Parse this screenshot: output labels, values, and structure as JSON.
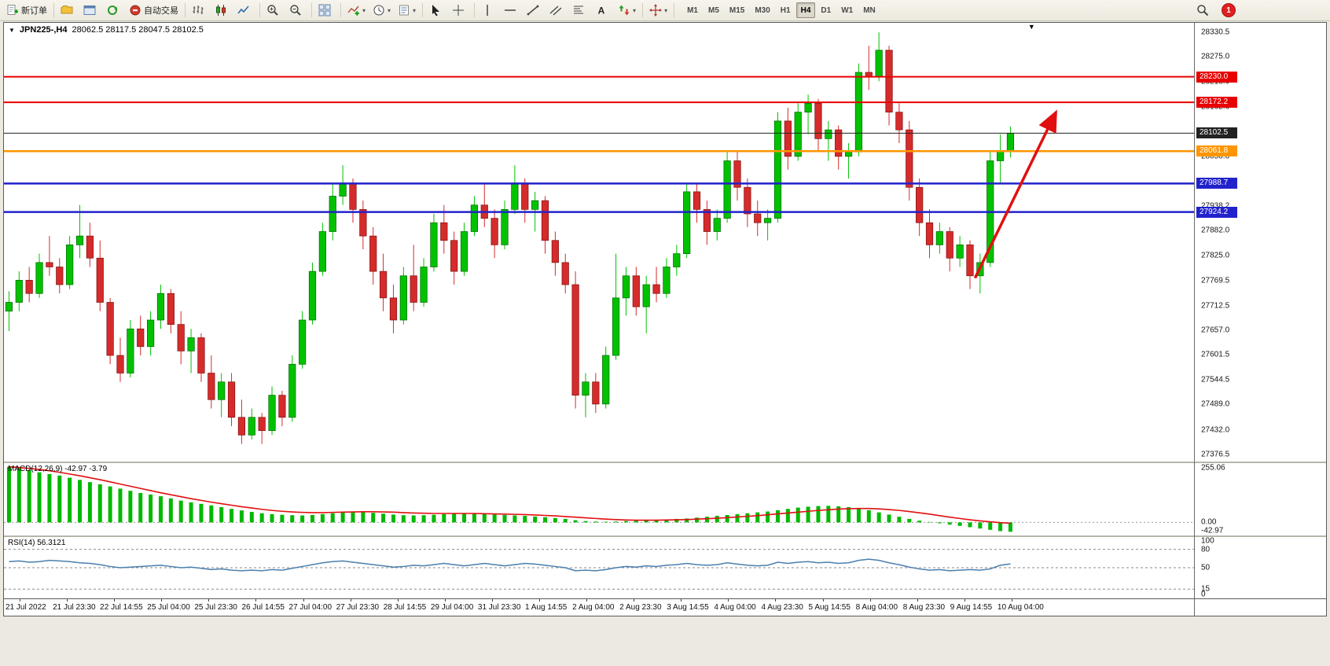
{
  "toolbar": {
    "buttons": [
      {
        "icon": "new-order",
        "label": "新订单"
      },
      {
        "sep": true
      },
      {
        "icon": "profiles"
      },
      {
        "icon": "terminal"
      },
      {
        "icon": "refresh"
      },
      {
        "icon": "autotrade",
        "label": "自动交易"
      },
      {
        "sep": true
      },
      {
        "icon": "bars-chart"
      },
      {
        "icon": "candles-chart"
      },
      {
        "icon": "line-chart"
      },
      {
        "sep": true
      },
      {
        "icon": "zoom-in"
      },
      {
        "icon": "zoom-out"
      },
      {
        "sep": true
      },
      {
        "icon": "tile-windows"
      },
      {
        "sep": true
      },
      {
        "icon": "indicators",
        "dropdown": true
      },
      {
        "icon": "periods",
        "dropdown": true
      },
      {
        "icon": "templates",
        "dropdown": true
      },
      {
        "sep": true
      },
      {
        "icon": "cursor"
      },
      {
        "icon": "crosshair"
      },
      {
        "sep": true
      },
      {
        "icon": "vline"
      },
      {
        "icon": "hline"
      },
      {
        "icon": "trendline"
      },
      {
        "icon": "channel"
      },
      {
        "icon": "fibonacci"
      },
      {
        "icon": "text"
      },
      {
        "icon": "arrows",
        "dropdown": true
      },
      {
        "sep": true
      },
      {
        "icon": "scroll",
        "dropdown": true
      },
      {
        "sep": true
      }
    ],
    "timeframes": [
      "M1",
      "M5",
      "M15",
      "M30",
      "H1",
      "H4",
      "D1",
      "W1",
      "MN"
    ],
    "active_timeframe": "H4",
    "right_buttons": [
      {
        "icon": "search"
      },
      {
        "icon": "alert",
        "count": "1"
      }
    ]
  },
  "chart": {
    "symbol_label": "JPN225-,H4",
    "ohlc": "28062.5 28117.5 28047.5 28102.5"
  },
  "chart_data": [
    {
      "type": "candlestick",
      "title": "JPN225-,H4",
      "timeframe": "H4",
      "grid": "off",
      "up_color": "#00c200",
      "down_color": "#d62b2b",
      "ylim": [
        27360,
        28352
      ],
      "y_ticks": [
        "28330.5",
        "28275.0",
        "28218.0",
        "28162.6",
        "28106.1",
        "28050.0",
        "27993.6",
        "27938.2",
        "27882.0",
        "27825.0",
        "27769.5",
        "27712.5",
        "27657.0",
        "27601.5",
        "27544.5",
        "27489.0",
        "27432.0",
        "27376.5"
      ],
      "x_labels": [
        "21 Jul 2022",
        "21 Jul 23:30",
        "22 Jul 14:55",
        "25 Jul 04:00",
        "25 Jul 23:30",
        "26 Jul 14:55",
        "27 Jul 04:00",
        "27 Jul 23:30",
        "28 Jul 14:55",
        "29 Jul 04:00",
        "31 Jul 23:30",
        "1 Aug 14:55",
        "2 Aug 04:00",
        "2 Aug 23:30",
        "3 Aug 14:55",
        "4 Aug 04:00",
        "4 Aug 23:30",
        "5 Aug 14:55",
        "8 Aug 04:00",
        "8 Aug 23:30",
        "9 Aug 14:55",
        "10 Aug 04:00"
      ],
      "levels": [
        {
          "price": 28230.0,
          "label": "28230.0",
          "color": "#e80000",
          "width": 2
        },
        {
          "price": 28172.2,
          "label": "28172.2",
          "color": "#e80000",
          "width": 2
        },
        {
          "price": 28102.5,
          "label": "28102.5",
          "color": "#222222",
          "width": 1
        },
        {
          "price": 28061.8,
          "label": "28061.8",
          "color": "#ff9500",
          "width": 2.5
        },
        {
          "price": 27988.7,
          "label": "27988.7",
          "color": "#2222cc",
          "width": 2.5
        },
        {
          "price": 27924.2,
          "label": "27924.2",
          "color": "#2222cc",
          "width": 2.5
        }
      ],
      "arrow": {
        "from_index": 95.5,
        "from_price": 27775,
        "to_index": 103.5,
        "to_price": 28150,
        "color": "#e01010",
        "width": 3.5
      },
      "candles": [
        [
          27700,
          27745,
          27655,
          27720
        ],
        [
          27720,
          27790,
          27700,
          27770
        ],
        [
          27770,
          27800,
          27720,
          27740
        ],
        [
          27740,
          27830,
          27730,
          27810
        ],
        [
          27810,
          27870,
          27780,
          27800
        ],
        [
          27800,
          27820,
          27740,
          27760
        ],
        [
          27760,
          27870,
          27750,
          27850
        ],
        [
          27850,
          27940,
          27820,
          27870
        ],
        [
          27870,
          27900,
          27800,
          27820
        ],
        [
          27820,
          27860,
          27700,
          27720
        ],
        [
          27720,
          27730,
          27580,
          27600
        ],
        [
          27600,
          27640,
          27540,
          27560
        ],
        [
          27560,
          27680,
          27550,
          27660
        ],
        [
          27660,
          27690,
          27600,
          27620
        ],
        [
          27620,
          27700,
          27600,
          27680
        ],
        [
          27680,
          27760,
          27660,
          27740
        ],
        [
          27740,
          27750,
          27650,
          27670
        ],
        [
          27670,
          27700,
          27580,
          27610
        ],
        [
          27610,
          27660,
          27560,
          27640
        ],
        [
          27640,
          27650,
          27540,
          27560
        ],
        [
          27560,
          27600,
          27480,
          27500
        ],
        [
          27500,
          27560,
          27460,
          27540
        ],
        [
          27540,
          27560,
          27440,
          27460
        ],
        [
          27460,
          27500,
          27400,
          27420
        ],
        [
          27420,
          27480,
          27410,
          27460
        ],
        [
          27460,
          27470,
          27400,
          27430
        ],
        [
          27430,
          27530,
          27420,
          27510
        ],
        [
          27510,
          27520,
          27440,
          27460
        ],
        [
          27460,
          27600,
          27450,
          27580
        ],
        [
          27580,
          27700,
          27570,
          27680
        ],
        [
          27680,
          27810,
          27670,
          27790
        ],
        [
          27790,
          27900,
          27780,
          27880
        ],
        [
          27880,
          27990,
          27860,
          27960
        ],
        [
          27960,
          28030,
          27940,
          27990
        ],
        [
          27990,
          28000,
          27900,
          27930
        ],
        [
          27930,
          27950,
          27840,
          27870
        ],
        [
          27870,
          27890,
          27760,
          27790
        ],
        [
          27790,
          27830,
          27700,
          27730
        ],
        [
          27730,
          27760,
          27650,
          27680
        ],
        [
          27680,
          27800,
          27670,
          27780
        ],
        [
          27780,
          27850,
          27700,
          27720
        ],
        [
          27720,
          27820,
          27710,
          27800
        ],
        [
          27800,
          27920,
          27790,
          27900
        ],
        [
          27900,
          27940,
          27830,
          27860
        ],
        [
          27860,
          27880,
          27760,
          27790
        ],
        [
          27790,
          27900,
          27780,
          27880
        ],
        [
          27880,
          27960,
          27870,
          27940
        ],
        [
          27940,
          27990,
          27890,
          27910
        ],
        [
          27910,
          27930,
          27820,
          27850
        ],
        [
          27850,
          27950,
          27840,
          27930
        ],
        [
          27930,
          28030,
          27920,
          27990
        ],
        [
          27990,
          28000,
          27900,
          27930
        ],
        [
          27930,
          27970,
          27880,
          27950
        ],
        [
          27950,
          27960,
          27830,
          27860
        ],
        [
          27860,
          27880,
          27780,
          27810
        ],
        [
          27810,
          27830,
          27740,
          27760
        ],
        [
          27760,
          27790,
          27480,
          27510
        ],
        [
          27510,
          27560,
          27460,
          27540
        ],
        [
          27540,
          27560,
          27470,
          27490
        ],
        [
          27490,
          27620,
          27480,
          27600
        ],
        [
          27600,
          27830,
          27590,
          27730
        ],
        [
          27730,
          27800,
          27690,
          27780
        ],
        [
          27780,
          27800,
          27690,
          27710
        ],
        [
          27710,
          27780,
          27650,
          27760
        ],
        [
          27760,
          27800,
          27720,
          27740
        ],
        [
          27740,
          27820,
          27730,
          27800
        ],
        [
          27800,
          27850,
          27780,
          27830
        ],
        [
          27830,
          27990,
          27820,
          27970
        ],
        [
          27970,
          27990,
          27900,
          27930
        ],
        [
          27930,
          27950,
          27850,
          27880
        ],
        [
          27880,
          27930,
          27860,
          27910
        ],
        [
          27910,
          28060,
          27900,
          28040
        ],
        [
          28040,
          28060,
          27950,
          27980
        ],
        [
          27980,
          28000,
          27890,
          27920
        ],
        [
          27920,
          27950,
          27870,
          27900
        ],
        [
          27900,
          27930,
          27860,
          27910
        ],
        [
          27910,
          28150,
          27900,
          28130
        ],
        [
          28130,
          28160,
          28020,
          28050
        ],
        [
          28050,
          28170,
          28040,
          28150
        ],
        [
          28150,
          28190,
          28100,
          28170
        ],
        [
          28170,
          28180,
          28060,
          28090
        ],
        [
          28090,
          28130,
          28040,
          28110
        ],
        [
          28110,
          28120,
          28020,
          28050
        ],
        [
          28050,
          28080,
          28000,
          28060
        ],
        [
          28060,
          28260,
          28050,
          28240
        ],
        [
          28240,
          28300,
          28200,
          28230
        ],
        [
          28230,
          28330.5,
          28220,
          28290
        ],
        [
          28290,
          28300,
          28120,
          28150
        ],
        [
          28150,
          28170,
          28080,
          28110
        ],
        [
          28110,
          28130,
          27950,
          27980
        ],
        [
          27980,
          28000,
          27870,
          27900
        ],
        [
          27900,
          27930,
          27820,
          27850
        ],
        [
          27850,
          27900,
          27830,
          27880
        ],
        [
          27880,
          27890,
          27790,
          27820
        ],
        [
          27820,
          27870,
          27800,
          27850
        ],
        [
          27850,
          27860,
          27750,
          27780
        ],
        [
          27780,
          27830,
          27740,
          27810
        ],
        [
          27810,
          28060,
          27800,
          28040
        ],
        [
          28040,
          28100,
          27990,
          28062.5
        ],
        [
          28062.5,
          28117.5,
          28047.5,
          28102.5
        ]
      ]
    },
    {
      "type": "bar",
      "name": "MACD",
      "label": "MACD(12,26,9) -42.97 -3.79",
      "ylim": [
        -60,
        272
      ],
      "y_ticks": [
        "255.06",
        "0.00",
        "-42.97"
      ],
      "hist_color": "#00b800",
      "signal_color": "#e01010",
      "histogram": [
        255,
        248,
        240,
        230,
        222,
        215,
        205,
        195,
        185,
        175,
        165,
        155,
        145,
        135,
        128,
        120,
        110,
        100,
        92,
        85,
        78,
        70,
        62,
        55,
        48,
        42,
        38,
        35,
        33,
        32,
        34,
        38,
        42,
        46,
        48,
        47,
        44,
        40,
        36,
        33,
        32,
        33,
        35,
        38,
        40,
        41,
        40,
        38,
        36,
        34,
        32,
        30,
        27,
        24,
        20,
        16,
        10,
        6,
        4,
        3,
        4,
        6,
        8,
        10,
        12,
        14,
        16,
        18,
        22,
        26,
        30,
        34,
        38,
        42,
        46,
        50,
        56,
        62,
        68,
        72,
        75,
        76,
        74,
        70,
        64,
        56,
        46,
        36,
        26,
        16,
        8,
        2,
        -4,
        -10,
        -16,
        -22,
        -28,
        -34,
        -40,
        -42.97
      ],
      "signal": [
        255,
        252,
        248,
        243,
        237,
        230,
        222,
        214,
        205,
        196,
        186,
        176,
        166,
        156,
        146,
        136,
        127,
        118,
        109,
        101,
        93,
        86,
        79,
        72,
        66,
        60,
        55,
        51,
        48,
        46,
        45,
        45,
        46,
        47,
        48,
        49,
        49,
        48,
        47,
        45,
        43,
        42,
        41,
        41,
        41,
        41,
        41,
        40,
        39,
        38,
        37,
        36,
        34,
        32,
        30,
        27,
        24,
        21,
        18,
        15,
        13,
        11,
        10,
        10,
        10,
        11,
        12,
        13,
        15,
        17,
        19,
        22,
        25,
        28,
        31,
        35,
        39,
        43,
        47,
        51,
        55,
        58,
        61,
        63,
        64,
        64,
        62,
        59,
        55,
        50,
        44,
        38,
        31,
        24,
        18,
        12,
        7,
        3,
        -1,
        -3.79
      ]
    },
    {
      "type": "line",
      "name": "RSI",
      "label": "RSI(14) 56.3121",
      "ylim": [
        0,
        100
      ],
      "y_ticks": [
        "100",
        "80",
        "50",
        "15",
        "0"
      ],
      "levels": [
        80,
        50,
        15
      ],
      "line_color": "#4a7fae",
      "values": [
        60,
        61,
        59,
        60,
        62,
        61,
        60,
        58,
        57,
        55,
        52,
        50,
        51,
        52,
        53,
        54,
        52,
        50,
        51,
        49,
        47,
        48,
        46,
        45,
        46,
        45,
        47,
        46,
        49,
        52,
        55,
        58,
        60,
        61,
        59,
        57,
        55,
        53,
        51,
        52,
        54,
        53,
        55,
        57,
        55,
        53,
        55,
        57,
        55,
        53,
        55,
        57,
        56,
        54,
        52,
        50,
        45,
        46,
        45,
        47,
        50,
        52,
        51,
        53,
        52,
        54,
        55,
        57,
        55,
        54,
        55,
        58,
        56,
        54,
        53,
        54,
        59,
        57,
        59,
        60,
        58,
        59,
        57,
        58,
        62,
        64,
        62,
        58,
        55,
        51,
        48,
        46,
        47,
        45,
        46,
        47,
        46,
        48,
        54,
        56.31
      ]
    }
  ]
}
